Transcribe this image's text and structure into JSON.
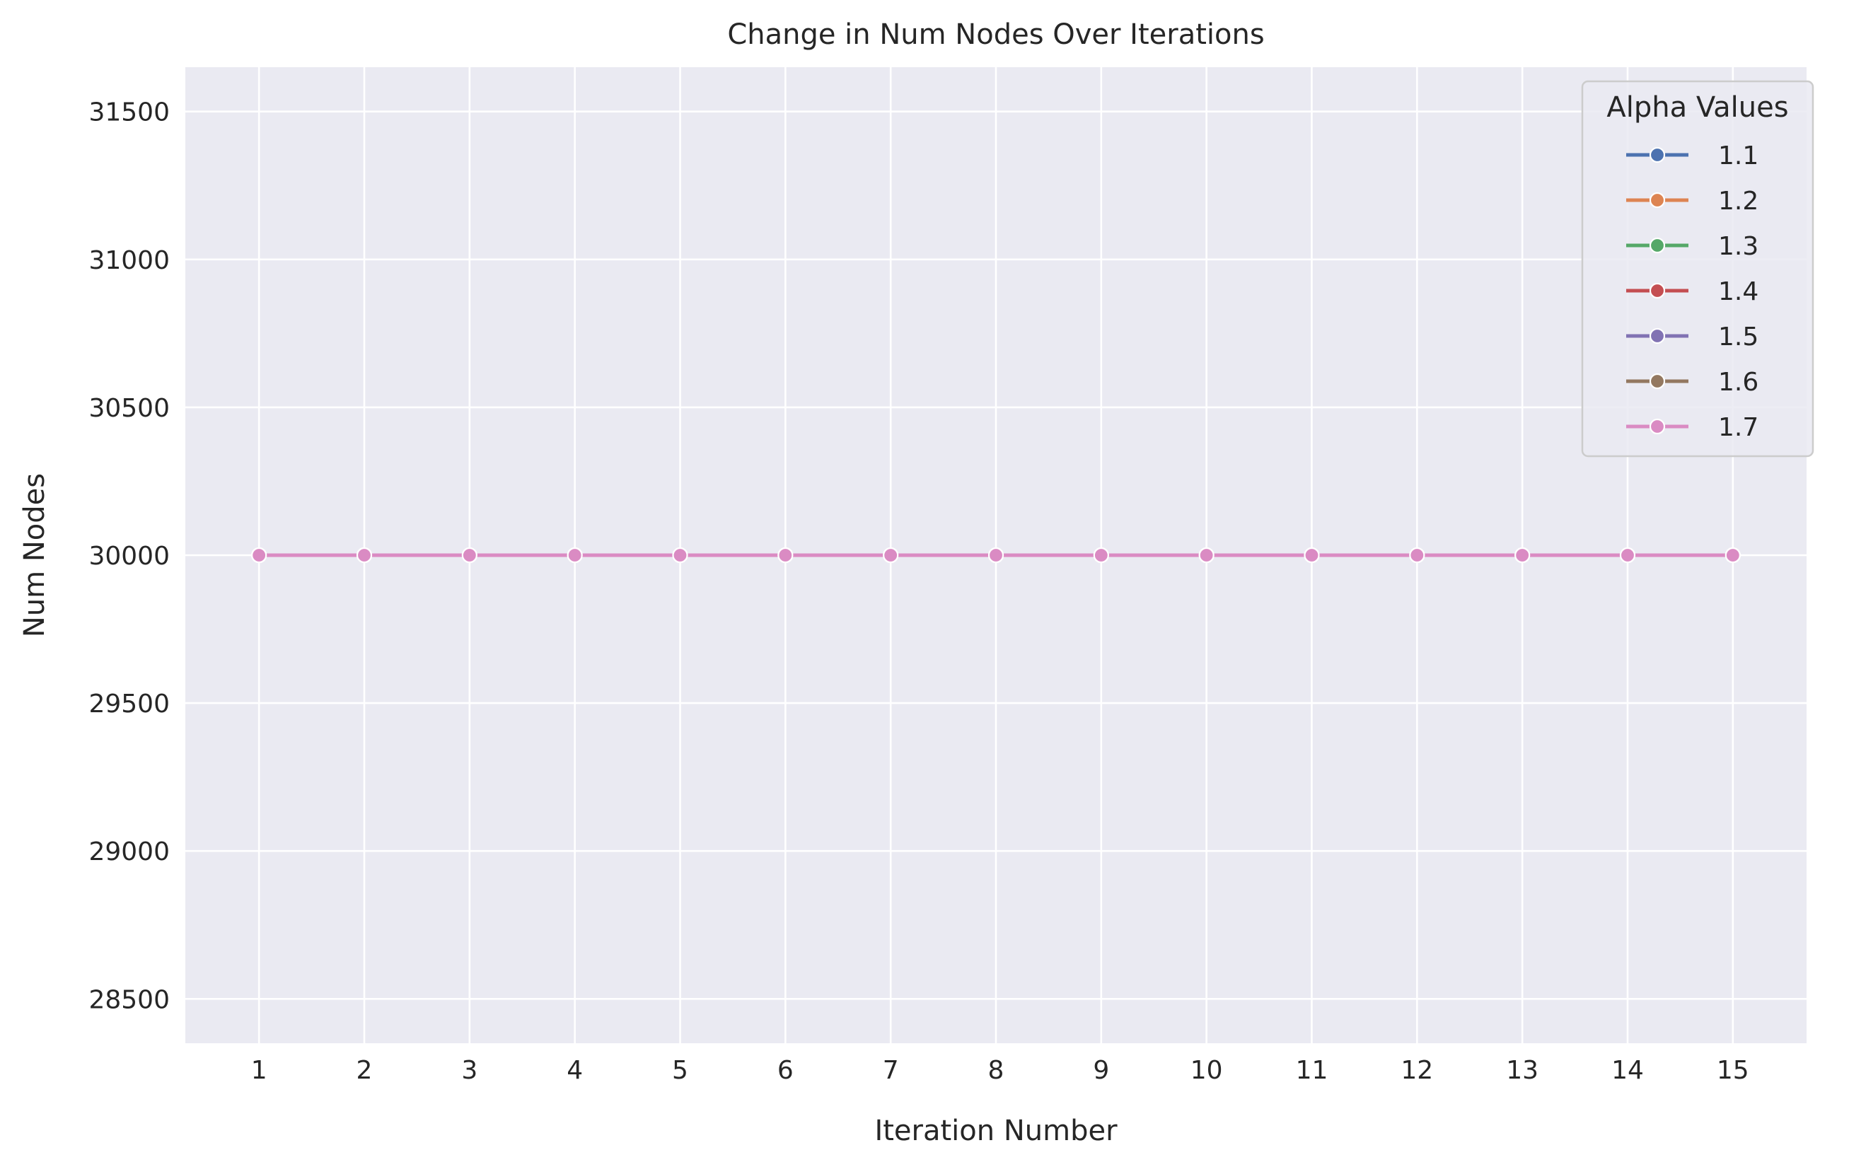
{
  "chart_data": {
    "type": "line",
    "title": "Change in Num Nodes Over Iterations",
    "xlabel": "Iteration Number",
    "ylabel": "Num Nodes",
    "x": [
      1,
      2,
      3,
      4,
      5,
      6,
      7,
      8,
      9,
      10,
      11,
      12,
      13,
      14,
      15
    ],
    "x_ticks": [
      "1",
      "2",
      "3",
      "4",
      "5",
      "6",
      "7",
      "8",
      "9",
      "10",
      "11",
      "12",
      "13",
      "14",
      "15"
    ],
    "y_ticks": [
      28500,
      29000,
      29500,
      30000,
      30500,
      31000,
      31500
    ],
    "y_tick_labels": [
      "28500",
      "29000",
      "29500",
      "30000",
      "30500",
      "31000",
      "31500"
    ],
    "xlim": [
      0.3,
      15.7
    ],
    "ylim": [
      28350,
      31650
    ],
    "grid": true,
    "legend": {
      "title": "Alpha Values",
      "position": "top-right"
    },
    "series": [
      {
        "name": "1.1",
        "color": "#4c72b0",
        "values": [
          30000,
          30000,
          30000,
          30000,
          30000,
          30000,
          30000,
          30000,
          30000,
          30000,
          30000,
          30000,
          30000,
          30000,
          30000
        ]
      },
      {
        "name": "1.2",
        "color": "#dd8452",
        "values": [
          30000,
          30000,
          30000,
          30000,
          30000,
          30000,
          30000,
          30000,
          30000,
          30000,
          30000,
          30000,
          30000,
          30000,
          30000
        ]
      },
      {
        "name": "1.3",
        "color": "#55a868",
        "values": [
          30000,
          30000,
          30000,
          30000,
          30000,
          30000,
          30000,
          30000,
          30000,
          30000,
          30000,
          30000,
          30000,
          30000,
          30000
        ]
      },
      {
        "name": "1.4",
        "color": "#c44e52",
        "values": [
          30000,
          30000,
          30000,
          30000,
          30000,
          30000,
          30000,
          30000,
          30000,
          30000,
          30000,
          30000,
          30000,
          30000,
          30000
        ]
      },
      {
        "name": "1.5",
        "color": "#8172b3",
        "values": [
          30000,
          30000,
          30000,
          30000,
          30000,
          30000,
          30000,
          30000,
          30000,
          30000,
          30000,
          30000,
          30000,
          30000,
          30000
        ]
      },
      {
        "name": "1.6",
        "color": "#937860",
        "values": [
          30000,
          30000,
          30000,
          30000,
          30000,
          30000,
          30000,
          30000,
          30000,
          30000,
          30000,
          30000,
          30000,
          30000,
          30000
        ]
      },
      {
        "name": "1.7",
        "color": "#da8bc3",
        "values": [
          30000,
          30000,
          30000,
          30000,
          30000,
          30000,
          30000,
          30000,
          30000,
          30000,
          30000,
          30000,
          30000,
          30000,
          30000
        ]
      }
    ],
    "colors": {
      "plot_background": "#eaeaf2",
      "grid": "#ffffff"
    }
  }
}
